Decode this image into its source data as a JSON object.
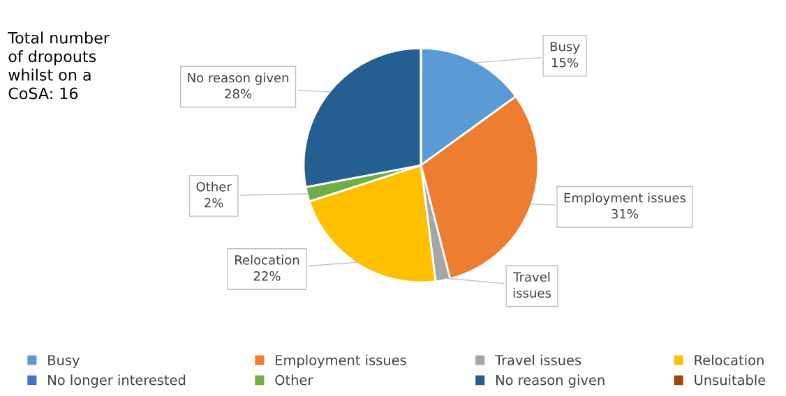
{
  "chart_data": {
    "type": "pie",
    "categories": [
      "Busy",
      "Employment issues",
      "Travel issues",
      "Relocation",
      "No longer interested",
      "Other",
      "No reason given",
      "Unsuitable"
    ],
    "values": [
      15,
      31,
      2,
      22,
      0,
      2,
      28,
      0
    ],
    "colors": [
      "#5b9bd5",
      "#ed7d31",
      "#a5a5a5",
      "#ffc000",
      "#4472c4",
      "#70ad47",
      "#255e91",
      "#9e480e"
    ],
    "value_labels": [
      "Busy\n15%",
      "Employment issues\n31%",
      "Travel\nissues",
      "Relocation\n22%",
      null,
      "Other\n2%",
      "No reason given\n28%",
      null
    ],
    "annotations": [
      "Total number\nof dropouts\nwhilst on a\nCoSA: 16"
    ],
    "legend": "bottom"
  }
}
